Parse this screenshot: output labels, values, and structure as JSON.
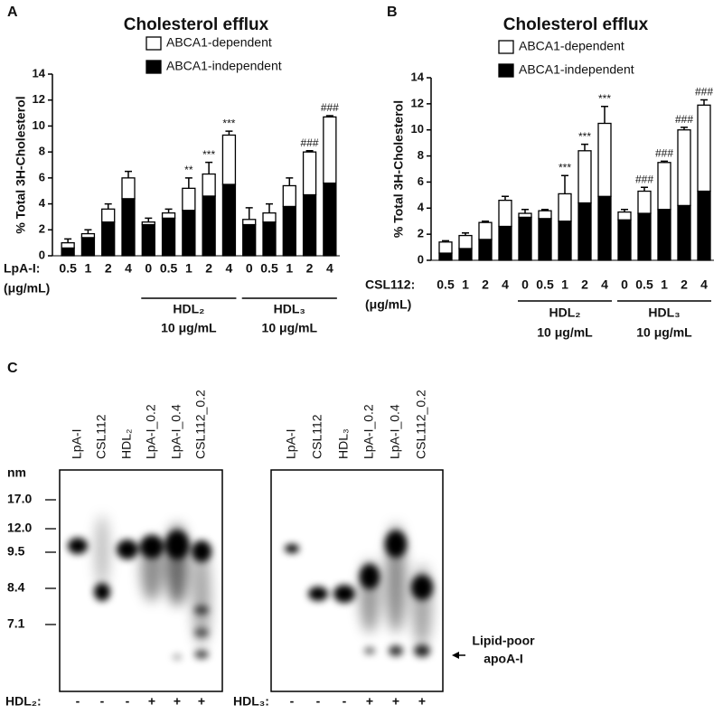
{
  "chart_data": [
    {
      "panel": "A",
      "type": "bar",
      "stacked": true,
      "title": "Cholesterol efflux",
      "ylabel": "% Total 3H-Cholesterol",
      "xlabel": "LpA-I:",
      "xunit": "(μg/mL)",
      "categories": [
        "0.5",
        "1",
        "2",
        "4",
        "0",
        "0.5",
        "1",
        "2",
        "4",
        "0",
        "0.5",
        "1",
        "2",
        "4"
      ],
      "series": [
        {
          "name": "ABCA1-dependent",
          "color": "#ffffff",
          "values": [
            0.4,
            0.3,
            1.0,
            1.6,
            0.2,
            0.4,
            1.7,
            1.7,
            3.8,
            0.4,
            0.7,
            1.6,
            3.3,
            5.1
          ],
          "errors": [
            0.3,
            0.3,
            0.4,
            0.5,
            0.3,
            0.3,
            0.8,
            0.9,
            0.3,
            0.9,
            0.7,
            0.6,
            0.1,
            0.1
          ]
        },
        {
          "name": "ABCA1-independent",
          "color": "#000000",
          "values": [
            0.6,
            1.4,
            2.6,
            4.4,
            2.4,
            2.9,
            3.5,
            4.6,
            5.5,
            2.4,
            2.6,
            3.8,
            4.7,
            5.6
          ]
        }
      ],
      "significance": [
        null,
        null,
        null,
        null,
        null,
        null,
        "**",
        "***",
        "***",
        null,
        null,
        null,
        "###",
        "###"
      ],
      "groups": [
        {
          "label": "HDL₂",
          "sublabel": "10 μg/mL"
        },
        {
          "label": "HDL₃",
          "sublabel": "10 μg/mL"
        }
      ],
      "ylim": [
        0,
        14
      ],
      "yticks": [
        0,
        2,
        4,
        6,
        8,
        10,
        12,
        14
      ]
    },
    {
      "panel": "B",
      "type": "bar",
      "stacked": true,
      "title": "Cholesterol efflux",
      "ylabel": "% Total 3H-Cholesterol",
      "xlabel": "CSL112:",
      "xunit": "(μg/mL)",
      "categories": [
        "0.5",
        "1",
        "2",
        "4",
        "0",
        "0.5",
        "1",
        "2",
        "4",
        "0",
        "0.5",
        "1",
        "2",
        "4"
      ],
      "series": [
        {
          "name": "ABCA1-dependent",
          "color": "#ffffff",
          "values": [
            0.85,
            1.0,
            1.3,
            2.0,
            0.3,
            0.6,
            2.1,
            4.0,
            5.6,
            0.6,
            1.7,
            3.6,
            5.8,
            6.6
          ],
          "errors": [
            0.1,
            0.2,
            0.1,
            0.3,
            0.3,
            0.1,
            1.4,
            0.5,
            1.3,
            0.2,
            0.3,
            0.1,
            0.2,
            0.4
          ]
        },
        {
          "name": "ABCA1-independent",
          "color": "#000000",
          "values": [
            0.55,
            0.9,
            1.6,
            2.6,
            3.3,
            3.2,
            3.0,
            4.4,
            4.9,
            3.1,
            3.6,
            3.9,
            4.2,
            5.3
          ]
        }
      ],
      "significance": [
        null,
        null,
        null,
        null,
        null,
        null,
        "***",
        "***",
        "***",
        null,
        "###",
        "###",
        "###",
        "###"
      ],
      "groups": [
        {
          "label": "HDL₂",
          "sublabel": "10 μg/mL"
        },
        {
          "label": "HDL₃",
          "sublabel": "10 μg/mL"
        }
      ],
      "ylim": [
        0,
        14
      ],
      "yticks": [
        0,
        2,
        4,
        6,
        8,
        10,
        12,
        14
      ]
    }
  ],
  "panel_c": {
    "panel": "C",
    "size_label": "nm",
    "size_markers": [
      "17.0",
      "12.0",
      "9.5",
      "8.4",
      "7.1"
    ],
    "annotation": [
      "Lipid-poor",
      "apoA-I"
    ],
    "gels": [
      {
        "lanes": [
          "LpA-I",
          "CSL112",
          "HDL₂",
          "LpA-I_0.2",
          "LpA-I_0.4",
          "CSL112_0.2"
        ],
        "treatment_label": "HDL₂:",
        "treatment": [
          "-",
          "-",
          "-",
          "+",
          "+",
          "+"
        ]
      },
      {
        "lanes": [
          "LpA-I",
          "CSL112",
          "HDL₃",
          "LpA-I_0.2",
          "LpA-I_0.4",
          "CSL112_0.2"
        ],
        "treatment_label": "HDL₃:",
        "treatment": [
          "-",
          "-",
          "-",
          "+",
          "+",
          "+"
        ]
      }
    ]
  }
}
